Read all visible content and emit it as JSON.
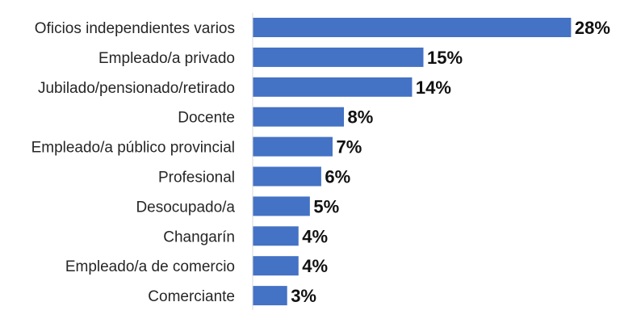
{
  "chart_data": {
    "type": "bar",
    "orientation": "horizontal",
    "categories": [
      "Oficios independientes varios",
      "Empleado/a privado",
      "Jubilado/pensionado/retirado",
      "Docente",
      "Empleado/a público provincial",
      "Profesional",
      "Desocupado/a",
      "Changarín",
      "Empleado/a de comercio",
      "Comerciante"
    ],
    "values": [
      28,
      15,
      14,
      8,
      7,
      6,
      5,
      4,
      4,
      3
    ],
    "value_labels": [
      "28%",
      "15%",
      "14%",
      "8%",
      "7%",
      "6%",
      "5%",
      "4%",
      "4%",
      "3%"
    ],
    "xlim": [
      0,
      30
    ],
    "grid": false,
    "legend": "none",
    "bar_color": "#4472C4"
  }
}
